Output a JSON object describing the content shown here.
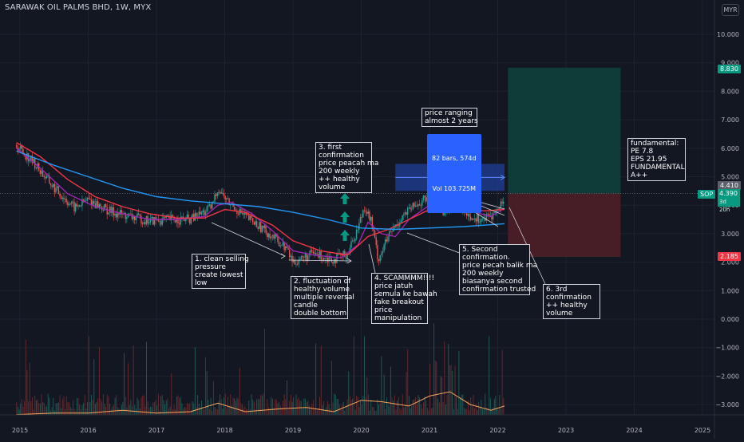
{
  "header": {
    "title": "SARAWAK OIL PALMS BHD, 1W, MYX",
    "currency": "MYR"
  },
  "chart_data": {
    "type": "candlestick",
    "symbol": "SOP",
    "interval": "1W",
    "exchange": "MYX",
    "x_ticks": [
      "2015",
      "2016",
      "2017",
      "2018",
      "2019",
      "2020",
      "2021",
      "2022",
      "2023",
      "2024",
      "2025"
    ],
    "y_ticks": [
      "10.000",
      "9.000",
      "8.000",
      "7.000",
      "6.000",
      "5.000",
      "4.000",
      "3.000",
      "2.000",
      "1.000",
      "0.000",
      "−1.000",
      "−2.000",
      "−3.000"
    ],
    "y_tick_values": [
      10,
      9,
      8,
      7,
      6,
      5,
      4,
      3,
      2,
      1,
      0,
      -1,
      -2,
      -3
    ],
    "ylim": [
      -4.0,
      10.9
    ],
    "price_path": [
      [
        2014.95,
        6.1
      ],
      [
        2015.2,
        5.5
      ],
      [
        2015.5,
        4.6
      ],
      [
        2015.8,
        3.9
      ],
      [
        2016.0,
        4.2
      ],
      [
        2016.3,
        3.8
      ],
      [
        2016.6,
        3.6
      ],
      [
        2016.9,
        3.45
      ],
      [
        2017.2,
        3.5
      ],
      [
        2017.5,
        3.5
      ],
      [
        2017.8,
        3.9
      ],
      [
        2017.9,
        4.6
      ],
      [
        2018.05,
        4.1
      ],
      [
        2018.3,
        3.6
      ],
      [
        2018.6,
        3.1
      ],
      [
        2018.9,
        2.5
      ],
      [
        2019.0,
        2.0
      ],
      [
        2019.3,
        2.3
      ],
      [
        2019.6,
        2.1
      ],
      [
        2019.8,
        2.3
      ],
      [
        2019.95,
        3.2
      ],
      [
        2020.05,
        4.0
      ],
      [
        2020.15,
        3.4
      ],
      [
        2020.25,
        2.1
      ],
      [
        2020.4,
        2.9
      ],
      [
        2020.6,
        3.6
      ],
      [
        2020.8,
        4.0
      ],
      [
        2021.0,
        4.3
      ],
      [
        2021.2,
        3.8
      ],
      [
        2021.4,
        4.1
      ],
      [
        2021.6,
        3.6
      ],
      [
        2021.8,
        3.5
      ],
      [
        2021.95,
        3.7
      ],
      [
        2022.05,
        4.0
      ],
      [
        2022.1,
        4.39
      ]
    ],
    "series": [
      {
        "name": "MA (fast)",
        "color": "#9c27b0",
        "points": [
          [
            2014.95,
            6.0
          ],
          [
            2015.3,
            5.3
          ],
          [
            2015.7,
            4.4
          ],
          [
            2016.1,
            3.95
          ],
          [
            2016.5,
            3.7
          ],
          [
            2016.9,
            3.5
          ],
          [
            2017.3,
            3.5
          ],
          [
            2017.7,
            3.6
          ],
          [
            2017.9,
            4.0
          ],
          [
            2018.1,
            4.1
          ],
          [
            2018.4,
            3.7
          ],
          [
            2018.7,
            3.1
          ],
          [
            2019.0,
            2.4
          ],
          [
            2019.3,
            2.25
          ],
          [
            2019.7,
            2.15
          ],
          [
            2019.95,
            2.6
          ],
          [
            2020.1,
            3.4
          ],
          [
            2020.3,
            3.0
          ],
          [
            2020.5,
            2.9
          ],
          [
            2020.7,
            3.5
          ],
          [
            2021.0,
            4.0
          ],
          [
            2021.3,
            3.95
          ],
          [
            2021.6,
            3.8
          ],
          [
            2021.9,
            3.6
          ],
          [
            2022.1,
            3.9
          ]
        ]
      },
      {
        "name": "MA (mid)",
        "color": "#f23645",
        "points": [
          [
            2014.95,
            6.2
          ],
          [
            2015.3,
            5.7
          ],
          [
            2015.7,
            4.9
          ],
          [
            2016.1,
            4.3
          ],
          [
            2016.5,
            3.95
          ],
          [
            2016.9,
            3.7
          ],
          [
            2017.3,
            3.55
          ],
          [
            2017.7,
            3.55
          ],
          [
            2018.0,
            3.85
          ],
          [
            2018.3,
            3.75
          ],
          [
            2018.7,
            3.3
          ],
          [
            2019.0,
            2.75
          ],
          [
            2019.4,
            2.4
          ],
          [
            2019.8,
            2.25
          ],
          [
            2020.1,
            2.9
          ],
          [
            2020.4,
            3.15
          ],
          [
            2020.7,
            3.5
          ],
          [
            2021.0,
            3.85
          ],
          [
            2021.4,
            3.95
          ],
          [
            2021.8,
            3.8
          ],
          [
            2022.1,
            3.85
          ]
        ]
      },
      {
        "name": "MA 200",
        "color": "#2196f3",
        "points": [
          [
            2014.95,
            5.9
          ],
          [
            2015.5,
            5.4
          ],
          [
            2016.0,
            5.0
          ],
          [
            2016.5,
            4.6
          ],
          [
            2017.0,
            4.3
          ],
          [
            2017.5,
            4.15
          ],
          [
            2018.0,
            4.05
          ],
          [
            2018.5,
            3.95
          ],
          [
            2019.0,
            3.75
          ],
          [
            2019.5,
            3.5
          ],
          [
            2020.0,
            3.2
          ],
          [
            2020.5,
            3.15
          ],
          [
            2021.0,
            3.2
          ],
          [
            2021.5,
            3.25
          ],
          [
            2022.1,
            3.35
          ]
        ]
      }
    ],
    "volume_avg": [
      [
        2014.95,
        -3.35
      ],
      [
        2015.5,
        -3.3
      ],
      [
        2016.0,
        -3.3
      ],
      [
        2016.5,
        -3.2
      ],
      [
        2017.0,
        -3.3
      ],
      [
        2017.5,
        -3.25
      ],
      [
        2017.9,
        -2.95
      ],
      [
        2018.3,
        -3.25
      ],
      [
        2018.8,
        -3.15
      ],
      [
        2019.2,
        -3.1
      ],
      [
        2019.6,
        -3.25
      ],
      [
        2020.0,
        -2.85
      ],
      [
        2020.3,
        -2.9
      ],
      [
        2020.7,
        -3.05
      ],
      [
        2021.0,
        -2.7
      ],
      [
        2021.3,
        -2.55
      ],
      [
        2021.6,
        -3.0
      ],
      [
        2021.9,
        -3.2
      ],
      [
        2022.1,
        -3.05
      ]
    ],
    "position": {
      "entry": 4.41,
      "target": 8.83,
      "stop": 2.185,
      "x_start": 2022.15,
      "x_end": 2023.8,
      "labels": {
        "target": "8.830",
        "entry": "4.410",
        "stop": "2.185"
      }
    },
    "current_price": {
      "symbol": "SOP",
      "value": "4.390",
      "countdown": "3d 20h"
    },
    "date_range": {
      "x_start": 2020.5,
      "x_end": 2022.1,
      "low": 4.5,
      "high": 5.45,
      "bars": "82 bars, 574d",
      "volume": "Vol 103.725M"
    },
    "annotations": [
      {
        "text": "1. clean selling\npressure\ncreate lowest\nlow"
      },
      {
        "text": "2. fluctuation of\nhealthy volume\nmultiple reversal\ncandle\ndouble bottom"
      },
      {
        "text": "3. first\nconfirmation\nprice peacah ma\n200 weekly\n++ healthy\nvolume"
      },
      {
        "text": "4. SCAMMMM!!!!\nprice jatuh\nsemula ke bawah\nfake breakout\nprice\nmanipulation"
      },
      {
        "text": "5. Second\nconfirmation.\nprice pecah balik ma\n200 weekly\nbiasanya second\nconfirmation trusted"
      },
      {
        "text": "6. 3rd\nconfirmation\n++ healthy\nvolume"
      },
      {
        "text": "price ranging\nalmost 2 years"
      },
      {
        "text": "fundamental:\nPE 7.8\nEPS 21.95\nFUNDAMENTAL\nA++"
      }
    ],
    "colors": {
      "background": "#131722",
      "up": "#26a69a",
      "down": "#ef5350",
      "grid": "#1e222d",
      "target_zone": "#0f3d3a",
      "stop_zone": "#4a1f27",
      "date_range": "#1e3a8a",
      "arrow": "#089981"
    }
  }
}
